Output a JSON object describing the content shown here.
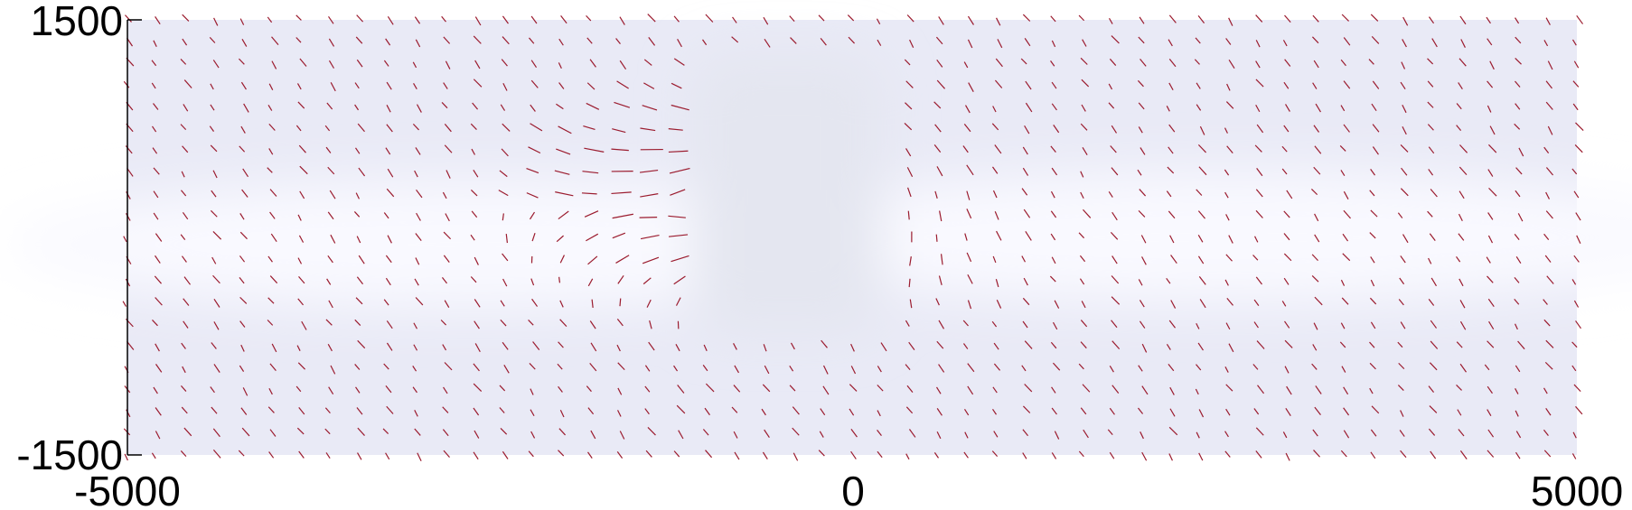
{
  "chart_data": {
    "type": "vector-field",
    "title": "",
    "xlabel": "",
    "ylabel": "",
    "xlim": [
      -5000,
      5000
    ],
    "ylim": [
      -1500,
      1500
    ],
    "x_ticks": [
      {
        "value": -5000,
        "label": "-5000"
      },
      {
        "value": 0,
        "label": "0"
      },
      {
        "value": 5000,
        "label": "5000"
      }
    ],
    "y_ticks": [
      {
        "value": 1500,
        "label": "1500"
      },
      {
        "value": -1500,
        "label": "-1500"
      }
    ],
    "grid": false,
    "legend": "none",
    "field_grid": {
      "x_start": -5000,
      "x_step": 200,
      "x_count": 51,
      "y_start": -1500,
      "y_step": 150,
      "y_count": 21,
      "default_direction_deg": 110,
      "segment_length_units": 95
    },
    "empty_region": {
      "x": [
        -1100,
        200
      ],
      "y": [
        -650,
        1250
      ]
    },
    "colors": {
      "background": "#e9eaf6",
      "band": "#f9f9ff",
      "hole": "#e4e6f0",
      "segments": "#9b1b2e",
      "axes": "#000000"
    }
  }
}
